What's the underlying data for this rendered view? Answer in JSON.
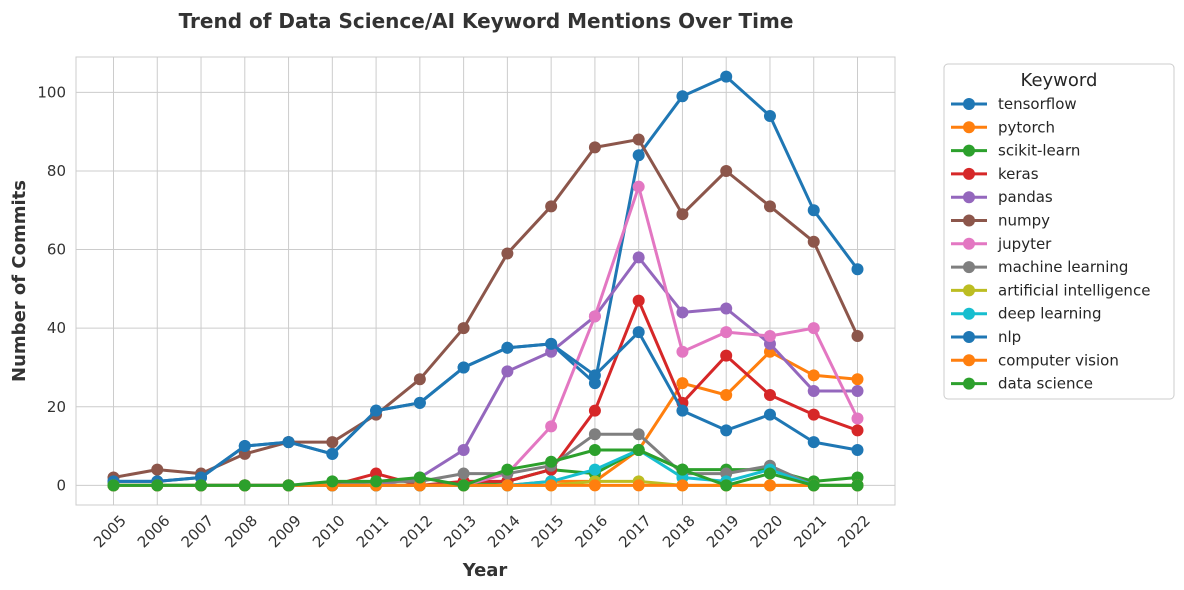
{
  "chart_data": {
    "type": "line",
    "title": "Trend of Data Science/AI Keyword Mentions Over Time",
    "xlabel": "Year",
    "ylabel": "Number of Commits",
    "x": [
      "2005",
      "2006",
      "2007",
      "2008",
      "2009",
      "2010",
      "2011",
      "2012",
      "2013",
      "2014",
      "2015",
      "2016",
      "2017",
      "2018",
      "2019",
      "2020",
      "2021",
      "2022"
    ],
    "yticks": [
      "0",
      "20",
      "40",
      "60",
      "80",
      "100"
    ],
    "ylim": [
      -5,
      109
    ],
    "grid": true,
    "legend": {
      "title": "Keyword",
      "placement": "outside-right"
    },
    "series": [
      {
        "name": "tensorflow",
        "color": "#1f77b4",
        "values": [
          1,
          1,
          2,
          10,
          11,
          8,
          19,
          21,
          30,
          35,
          36,
          26,
          84,
          99,
          104,
          94,
          70,
          55
        ]
      },
      {
        "name": "pytorch",
        "color": "#ff7f0e",
        "values": [
          0,
          0,
          0,
          0,
          0,
          0,
          0,
          0,
          0,
          0,
          1,
          1,
          9,
          26,
          23,
          34,
          28,
          27
        ]
      },
      {
        "name": "scikit-learn",
        "color": "#2ca02c",
        "values": [
          0,
          0,
          0,
          0,
          0,
          0,
          0,
          0,
          0,
          1,
          4,
          3,
          9,
          4,
          4,
          4,
          1,
          2
        ]
      },
      {
        "name": "keras",
        "color": "#d62728",
        "values": [
          0,
          0,
          0,
          0,
          0,
          0,
          3,
          0,
          1,
          1,
          4,
          19,
          47,
          21,
          33,
          23,
          18,
          14
        ]
      },
      {
        "name": "pandas",
        "color": "#9467bd",
        "values": [
          0,
          0,
          0,
          0,
          0,
          0,
          0,
          2,
          9,
          29,
          34,
          43,
          58,
          44,
          45,
          36,
          24,
          24
        ]
      },
      {
        "name": "numpy",
        "color": "#8c564b",
        "values": [
          2,
          4,
          3,
          8,
          11,
          11,
          18,
          27,
          40,
          59,
          71,
          86,
          88,
          69,
          80,
          71,
          62,
          38
        ]
      },
      {
        "name": "jupyter",
        "color": "#e377c2",
        "values": [
          0,
          0,
          0,
          0,
          0,
          0,
          0,
          0,
          0,
          3,
          15,
          43,
          76,
          34,
          39,
          38,
          40,
          17
        ]
      },
      {
        "name": "machine learning",
        "color": "#7f7f7f",
        "values": [
          0,
          0,
          0,
          0,
          0,
          0,
          1,
          1,
          3,
          3,
          5,
          13,
          13,
          3,
          3,
          5,
          0,
          0
        ]
      },
      {
        "name": "artificial intelligence",
        "color": "#bcbd22",
        "values": [
          0,
          0,
          0,
          0,
          0,
          0,
          0,
          0,
          0,
          0,
          0,
          1,
          1,
          0,
          0,
          0,
          0,
          0
        ]
      },
      {
        "name": "deep learning",
        "color": "#17becf",
        "values": [
          0,
          0,
          0,
          0,
          0,
          0,
          0,
          0,
          0,
          0,
          1,
          4,
          9,
          2,
          1,
          4,
          0,
          0
        ]
      },
      {
        "name": "nlp",
        "color": "#1f77b4",
        "values": [
          1,
          1,
          2,
          10,
          11,
          8,
          19,
          21,
          30,
          35,
          36,
          28,
          39,
          19,
          14,
          18,
          11,
          9
        ]
      },
      {
        "name": "computer vision",
        "color": "#ff7f0e",
        "values": [
          0,
          0,
          0,
          0,
          0,
          0,
          0,
          0,
          0,
          0,
          0,
          0,
          0,
          0,
          0,
          0,
          0,
          0
        ]
      },
      {
        "name": "data science",
        "color": "#2ca02c",
        "values": [
          0,
          0,
          0,
          0,
          0,
          1,
          1,
          2,
          0,
          4,
          6,
          9,
          9,
          4,
          0,
          3,
          0,
          0
        ]
      }
    ]
  }
}
